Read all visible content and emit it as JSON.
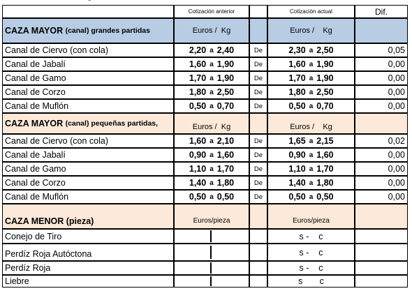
{
  "page_top_clipped": "ág",
  "colors": {
    "blue_header": "#b8cce4",
    "peach_header": "#fde9d9"
  },
  "header": {
    "prev": "Cotización anterior",
    "curr": "Cotización actual",
    "dif": "Dif."
  },
  "sections": [
    {
      "title": "CAZA MAYOR",
      "subtitle": "(canal) grandes partidas",
      "unit_prev_a": "Euros /",
      "unit_prev_b": "Kg",
      "unit_curr_a": "Euros /",
      "unit_curr_b": "Kg",
      "rows": [
        {
          "name": "Canal de Ciervo (con cola)",
          "pmin": "2,20",
          "pmax": "2,40",
          "de": "De",
          "cmin": "2,30",
          "cmax": "2,50",
          "dif": "0,05"
        },
        {
          "name": "Canal de Jabalí",
          "pmin": "1,60",
          "pmax": "1,90",
          "de": "De",
          "cmin": "1,60",
          "cmax": "1,90",
          "dif": "0,00"
        },
        {
          "name": "Canal de Gamo",
          "pmin": "1,70",
          "pmax": "1,90",
          "de": "De",
          "cmin": "1,70",
          "cmax": "1,90",
          "dif": "0,00"
        },
        {
          "name": "Canal de Corzo",
          "pmin": "1,80",
          "pmax": "2,50",
          "de": "De",
          "cmin": "1,80",
          "cmax": "2,50",
          "dif": "0,00"
        },
        {
          "name": "Canal de Muflón",
          "pmin": "0,50",
          "pmax": "0,70",
          "de": "De",
          "cmin": "0,50",
          "cmax": "0,70",
          "dif": "0,00"
        }
      ]
    },
    {
      "title": "CAZA MAYOR",
      "subtitle": "(canal) pequeñas  partidas,",
      "unit_prev_a": "Euros /",
      "unit_prev_b": "Kg",
      "unit_curr_a": "Euros /",
      "unit_curr_b": "Kg",
      "rows": [
        {
          "name": "Canal de Ciervo (con cola)",
          "pmin": "1,60",
          "pmax": "2,10",
          "de": "De",
          "cmin": "1,65",
          "cmax": "2,15",
          "dif": "0,02"
        },
        {
          "name": "Canal de Jabalí",
          "pmin": "0,90",
          "pmax": "1,60",
          "de": "De",
          "cmin": "0,90",
          "cmax": "1,60",
          "dif": "0,00"
        },
        {
          "name": "Canal de Gamo",
          "pmin": "1,10",
          "pmax": "1,70",
          "de": "De",
          "cmin": "1,10",
          "cmax": "1,70",
          "dif": "0,00"
        },
        {
          "name": "Canal de Corzo",
          "pmin": "1,40",
          "pmax": "1,80",
          "de": "De",
          "cmin": "1,40",
          "cmax": "1,80",
          "dif": "0,00"
        },
        {
          "name": "Canal de Muflón",
          "pmin": "0,50",
          "pmax": "0,50",
          "de": "De",
          "cmin": "0,50",
          "cmax": "0,50",
          "dif": "0,00"
        }
      ]
    },
    {
      "title": "CAZA MENOR",
      "subtitle": "(pieza)",
      "unit_prev": "Euros/pieza",
      "unit_curr": "Euros/pieza",
      "rows": [
        {
          "name": "Conejo de Tiro",
          "s": "s",
          "sep": "-",
          "c": "c"
        },
        {
          "name": "Perdíz Roja Autóctona",
          "s": "s",
          "sep": "-",
          "c": "c"
        },
        {
          "name": "Perdíz Roja",
          "s": "s",
          "sep": "-",
          "c": "c"
        },
        {
          "name": "Liebre",
          "s": "s",
          "sep": "",
          "c": "c"
        }
      ]
    }
  ],
  "a_sep": "a"
}
